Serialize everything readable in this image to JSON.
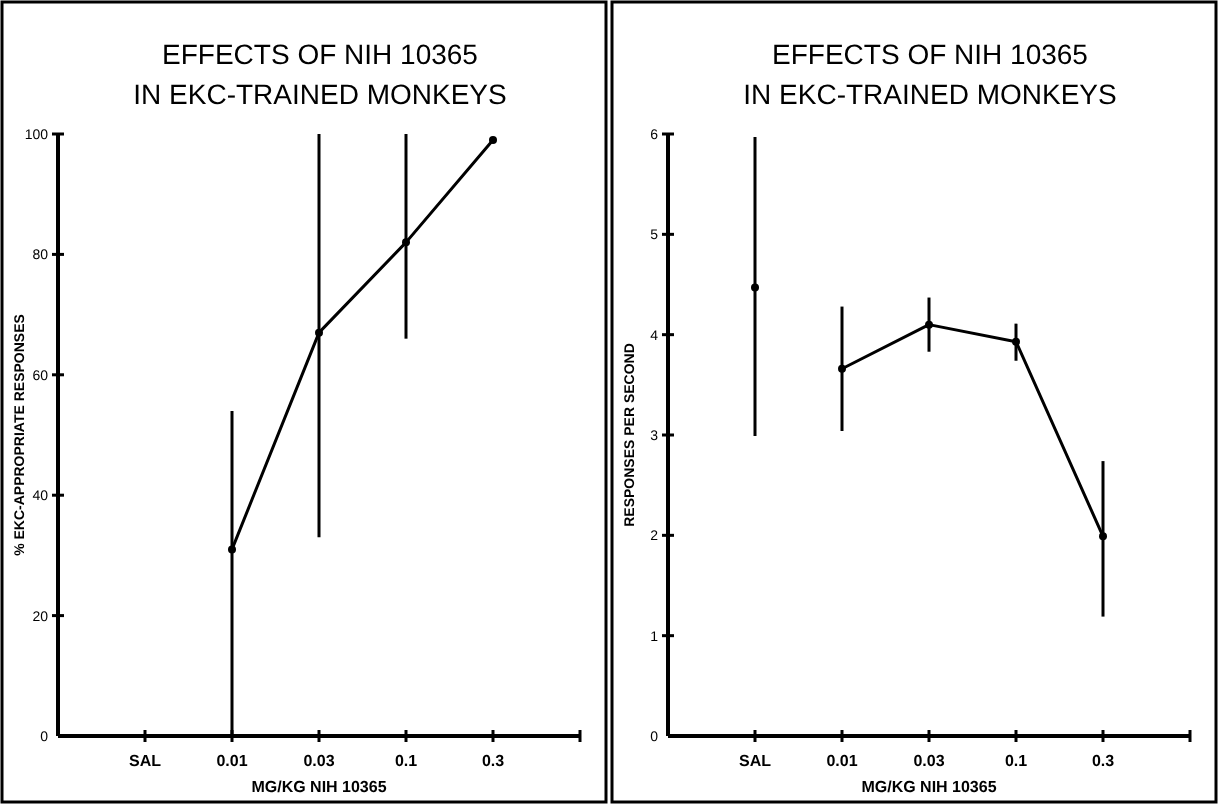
{
  "chart_data": [
    {
      "type": "line",
      "title": "EFFECTS OF NIH 10365\nIN EKC-TRAINED MONKEYS",
      "xlabel": "MG/KG NIH 10365",
      "ylabel": "% EKC-APPROPRIATE RESPONSES",
      "categories": [
        null,
        "SAL",
        "0.01",
        "0.03",
        "0.1",
        "0.3",
        null
      ],
      "ylim": [
        0,
        100
      ],
      "yticks": [
        0,
        20,
        40,
        60,
        80,
        100
      ],
      "grid": false,
      "marker": "circle",
      "line_style": "solid",
      "series": [
        {
          "type": "line",
          "color": "#000000",
          "values": [
            null,
            null,
            31,
            67,
            82,
            99,
            null
          ],
          "errors": [
            null,
            null,
            [
              0,
              54
            ],
            [
              33,
              100
            ],
            [
              66,
              100
            ],
            null,
            null
          ]
        }
      ]
    },
    {
      "type": "line",
      "title": "EFFECTS OF NIH 10365\nIN EKC-TRAINED MONKEYS",
      "xlabel": "MG/KG NIH 10365",
      "ylabel": "RESPONSES PER SECOND",
      "categories": [
        null,
        "SAL",
        "0.01",
        "0.03",
        "0.1",
        "0.3",
        null
      ],
      "ylim": [
        0,
        6
      ],
      "yticks": [
        0,
        1,
        2,
        3,
        4,
        5,
        6
      ],
      "grid": false,
      "marker": "circle",
      "line_style": "solid",
      "series": [
        {
          "type": "scatter",
          "color": "#000000",
          "values": [
            null,
            4.47,
            null,
            null,
            null,
            null,
            null
          ],
          "errors": [
            null,
            [
              2.99,
              5.97
            ],
            null,
            null,
            null,
            null,
            null
          ]
        },
        {
          "type": "line",
          "color": "#000000",
          "values": [
            null,
            null,
            3.66,
            4.1,
            3.93,
            1.99,
            null
          ],
          "errors": [
            null,
            null,
            [
              3.04,
              4.28
            ],
            [
              3.83,
              4.37
            ],
            [
              3.74,
              4.11
            ],
            [
              1.19,
              2.74
            ],
            null
          ]
        }
      ]
    }
  ]
}
